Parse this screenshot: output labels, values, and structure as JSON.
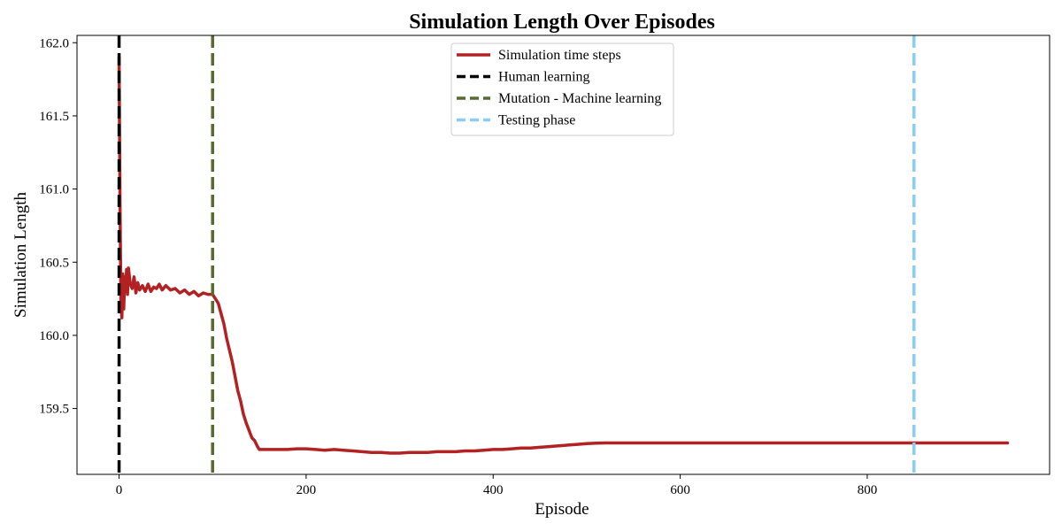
{
  "chart_data": {
    "type": "line",
    "title": "Simulation Length Over Episodes",
    "xlabel": "Episode",
    "ylabel": "Simulation Length",
    "xlim": [
      -45,
      995
    ],
    "ylim": [
      159.05,
      162.05
    ],
    "xticks": [
      0,
      200,
      400,
      600,
      800
    ],
    "yticks": [
      159.5,
      160.0,
      160.5,
      161.0,
      161.5,
      162.0
    ],
    "ytick_labels": [
      "159.5",
      "160.0",
      "160.5",
      "161.0",
      "161.5",
      "162.0"
    ],
    "grid": false,
    "legend_position": "top-center",
    "series": [
      {
        "name": "Simulation time steps",
        "color": "#b22222",
        "style": "solid",
        "x": [
          0,
          1,
          2,
          3,
          4,
          5,
          6,
          7,
          8,
          9,
          10,
          12,
          14,
          16,
          18,
          20,
          22,
          25,
          28,
          31,
          34,
          37,
          40,
          43,
          46,
          50,
          55,
          60,
          65,
          70,
          75,
          80,
          85,
          90,
          95,
          100,
          103,
          106,
          109,
          112,
          115,
          118,
          121,
          124,
          127,
          130,
          133,
          136,
          139,
          142,
          145,
          148,
          150,
          155,
          160,
          170,
          180,
          190,
          200,
          210,
          220,
          230,
          240,
          250,
          260,
          270,
          280,
          290,
          300,
          310,
          320,
          330,
          340,
          350,
          360,
          370,
          380,
          390,
          400,
          410,
          420,
          430,
          440,
          450,
          460,
          470,
          480,
          490,
          500,
          510,
          520,
          550,
          600,
          650,
          700,
          750,
          800,
          850,
          900,
          950
        ],
        "y": [
          161.9,
          160.9,
          160.2,
          160.12,
          160.42,
          160.18,
          160.4,
          160.3,
          160.45,
          160.28,
          160.46,
          160.35,
          160.32,
          160.4,
          160.29,
          160.36,
          160.31,
          160.34,
          160.3,
          160.35,
          160.3,
          160.33,
          160.32,
          160.35,
          160.31,
          160.34,
          160.31,
          160.32,
          160.29,
          160.31,
          160.28,
          160.3,
          160.27,
          160.29,
          160.28,
          160.28,
          160.25,
          160.22,
          160.15,
          160.08,
          159.98,
          159.9,
          159.82,
          159.72,
          159.62,
          159.55,
          159.46,
          159.4,
          159.35,
          159.3,
          159.28,
          159.24,
          159.22,
          159.22,
          159.22,
          159.22,
          159.22,
          159.225,
          159.225,
          159.22,
          159.215,
          159.22,
          159.215,
          159.21,
          159.205,
          159.2,
          159.2,
          159.195,
          159.195,
          159.2,
          159.2,
          159.2,
          159.205,
          159.205,
          159.205,
          159.21,
          159.21,
          159.215,
          159.22,
          159.22,
          159.225,
          159.23,
          159.23,
          159.235,
          159.24,
          159.245,
          159.25,
          159.255,
          159.26,
          159.263,
          159.265,
          159.265,
          159.265,
          159.265,
          159.265,
          159.265,
          159.265,
          159.265,
          159.265,
          159.265
        ]
      },
      {
        "name": "Human learning",
        "color": "#000000",
        "style": "dashed",
        "vline_x": 0
      },
      {
        "name": "Mutation - Machine learning",
        "color": "#556b2f",
        "style": "dashed",
        "vline_x": 100
      },
      {
        "name": "Testing phase",
        "color": "#87cefa",
        "style": "dashed",
        "vline_x": 850
      }
    ]
  }
}
